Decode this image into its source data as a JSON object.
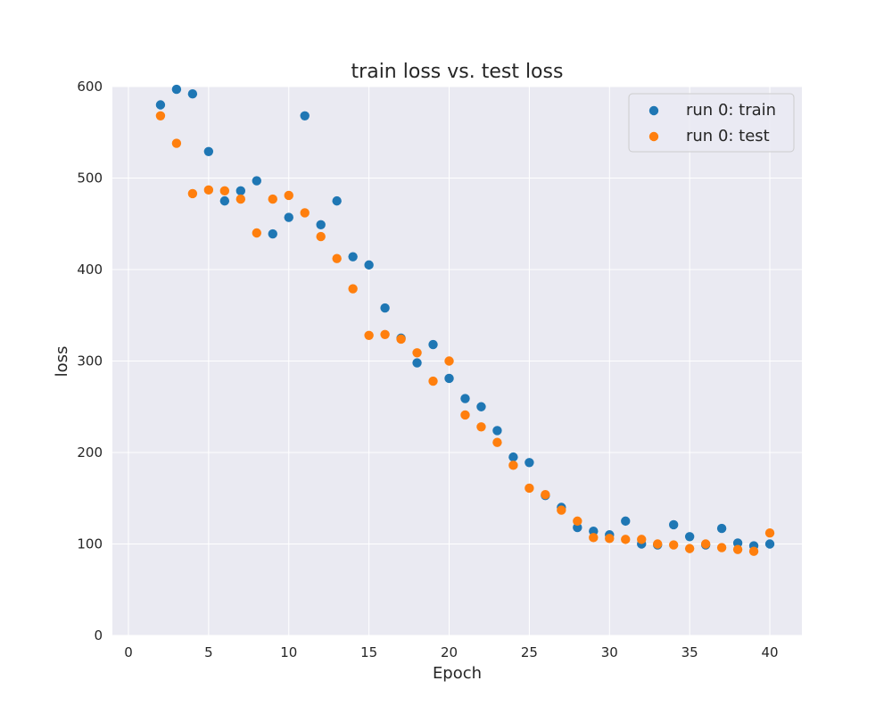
{
  "chart_data": {
    "type": "scatter",
    "title": "train loss vs. test loss",
    "xlabel": "Epoch",
    "ylabel": "loss",
    "xlim": [
      -1,
      42
    ],
    "ylim": [
      0,
      600
    ],
    "x_ticks": [
      0,
      5,
      10,
      15,
      20,
      25,
      30,
      35,
      40
    ],
    "y_ticks": [
      0,
      100,
      200,
      300,
      400,
      500,
      600
    ],
    "grid": true,
    "legend_position": "top-right",
    "background_color": "#eaeaf2",
    "series": [
      {
        "name": "run 0: train",
        "color": "#1f77b4",
        "x": [
          2,
          3,
          4,
          5,
          6,
          7,
          8,
          9,
          10,
          11,
          12,
          13,
          14,
          15,
          16,
          17,
          18,
          19,
          20,
          21,
          22,
          23,
          24,
          25,
          26,
          27,
          28,
          29,
          30,
          31,
          32,
          33,
          34,
          35,
          36,
          37,
          38,
          39,
          40
        ],
        "y": [
          580,
          597,
          592,
          529,
          475,
          486,
          497,
          439,
          457,
          568,
          449,
          475,
          414,
          405,
          358,
          325,
          298,
          318,
          281,
          259,
          250,
          224,
          195,
          189,
          153,
          140,
          118,
          114,
          110,
          125,
          100,
          99,
          121,
          108,
          99,
          117,
          101,
          98,
          100
        ]
      },
      {
        "name": "run 0: test",
        "color": "#ff7f0e",
        "x": [
          2,
          3,
          4,
          5,
          6,
          7,
          8,
          9,
          10,
          11,
          12,
          13,
          14,
          15,
          16,
          17,
          18,
          19,
          20,
          21,
          22,
          23,
          24,
          25,
          26,
          27,
          28,
          29,
          30,
          31,
          32,
          33,
          34,
          35,
          36,
          37,
          38,
          39,
          40
        ],
        "y": [
          568,
          538,
          483,
          487,
          486,
          477,
          440,
          477,
          481,
          462,
          436,
          412,
          379,
          328,
          329,
          324,
          309,
          278,
          300,
          241,
          228,
          211,
          186,
          161,
          154,
          137,
          125,
          107,
          106,
          105,
          105,
          100,
          99,
          95,
          100,
          96,
          94,
          92,
          112
        ]
      }
    ]
  }
}
